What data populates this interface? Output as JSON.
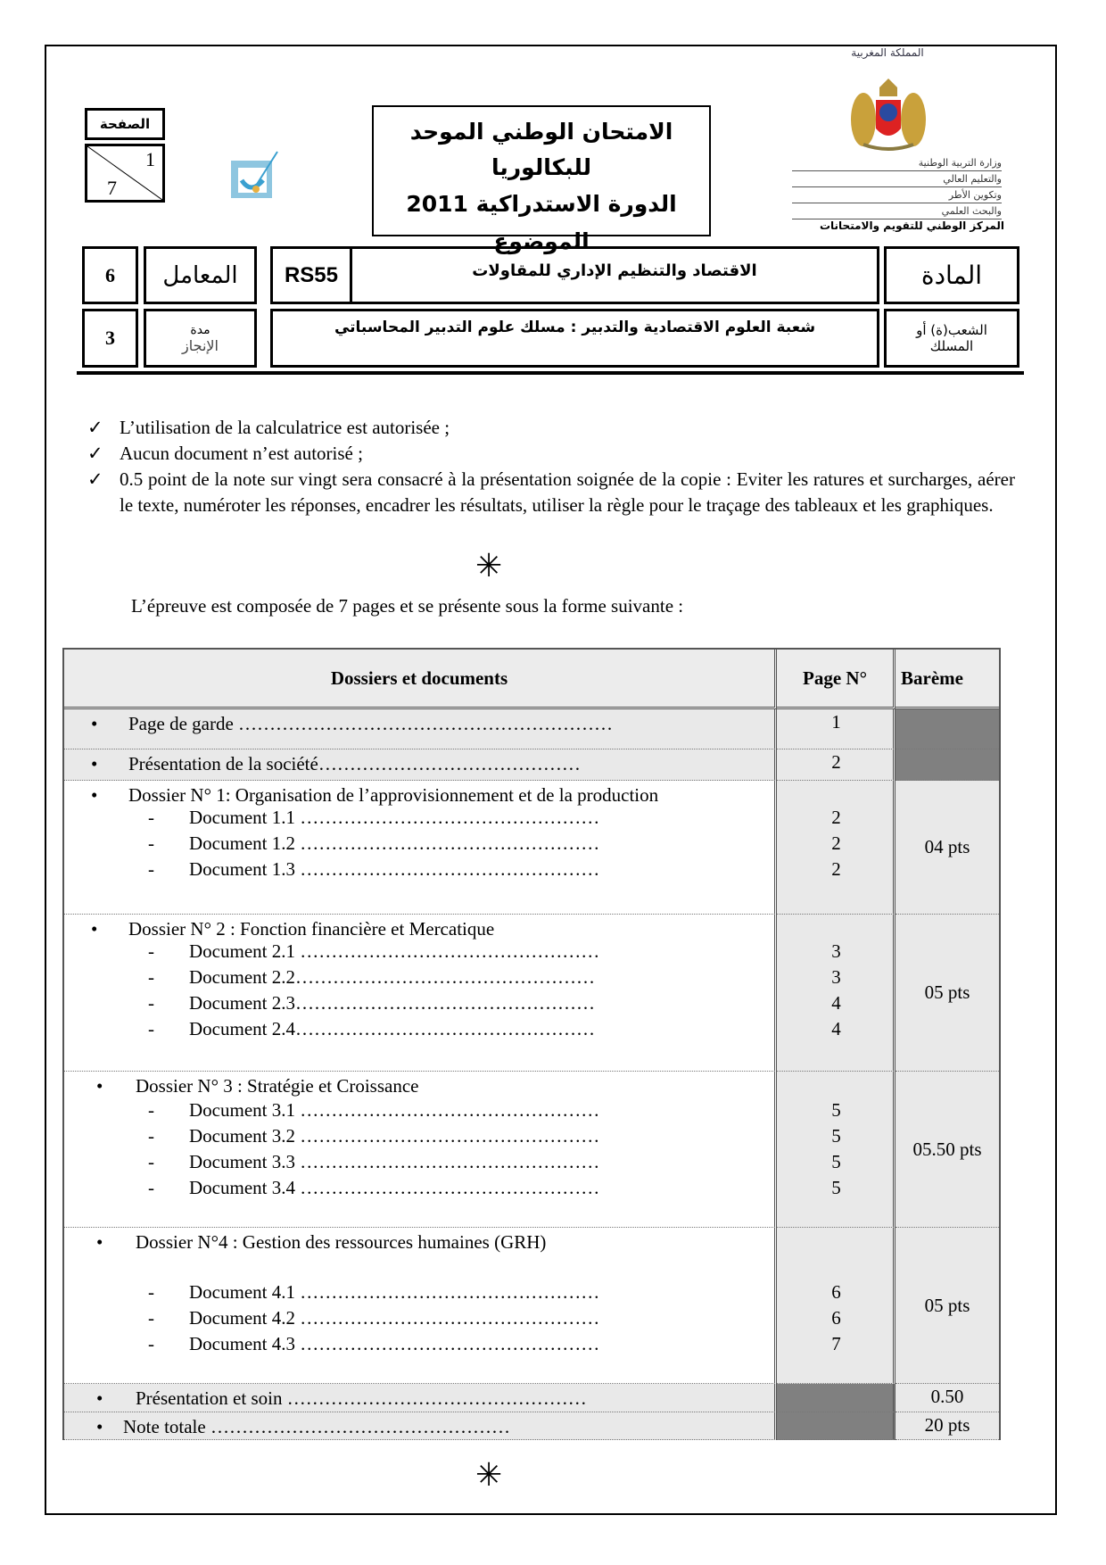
{
  "header": {
    "kingdom": "المملكة المغربية",
    "ministry_lines": [
      "وزارة التربية الوطنية",
      "والتعليم العالي",
      "وتكوين الأطر",
      "والبحث العلمي"
    ],
    "center": "المركز الوطني للتقويم والامتحانات",
    "page_label": "الصفحة",
    "page_current": "1",
    "page_total": "7",
    "exam_title_1": "الامتحان الوطني الموحد للبكالوريا",
    "exam_title_2": "الدورة الاستدراكية 2011",
    "exam_title_3": "الموضوع",
    "coef_value": "6",
    "coef_label": "المعامل",
    "code": "RS55",
    "subject": "الاقتصاد والتنظيم الإداري للمقاولات",
    "subject_label": "المادة",
    "duration_value": "3",
    "duration_label_1": "مدة",
    "duration_label_2": "الإنجاز",
    "branch": "شعبة العلوم الاقتصادية والتدبير : مسلك علوم التدبير المحاسباتي",
    "branch_label_1": "الشعب(ة) أو",
    "branch_label_2": "المسلك"
  },
  "instructions": [
    "L’utilisation de la calculatrice est autorisée ;",
    "Aucun document n’est autorisé ;",
    "0.5 point de la note sur vingt sera consacré à la présentation soignée de la copie : Eviter les ratures et surcharges, aérer le texte, numéroter les réponses, encadrer les résultats, utiliser la règle pour le traçage des tableaux et les graphiques."
  ],
  "intro": "L’épreuve est composée de 7 pages et se présente sous la forme suivante :",
  "table": {
    "headers": [
      "Dossiers et documents",
      "Page N°",
      "Barème"
    ],
    "rows": [
      {
        "title": "Page de garde ……………………………………………………",
        "page": "1",
        "bareme": "",
        "docs": []
      },
      {
        "title": "Présentation  de la société……………………………………",
        "page": "2",
        "bareme": "",
        "docs": []
      },
      {
        "title": "Dossier N° 1: Organisation de l’approvisionnement et de la production",
        "page": "",
        "bareme": "04 pts",
        "docs": [
          {
            "label": "Document 1.1 …………………………………………",
            "page": "2"
          },
          {
            "label": "Document 1.2 …………………………………………",
            "page": "2"
          },
          {
            "label": "Document 1.3 …………………………………………",
            "page": "2"
          }
        ]
      },
      {
        "title": "Dossier N° 2 : Fonction financière et Mercatique",
        "page": "",
        "bareme": "05 pts",
        "docs": [
          {
            "label": "Document 2.1 …………………………………………",
            "page": "3"
          },
          {
            "label": "Document 2.2…………………………………………",
            "page": "3"
          },
          {
            "label": "Document 2.3…………………………………………",
            "page": "4"
          },
          {
            "label": "Document 2.4…………………………………………",
            "page": "4"
          }
        ]
      },
      {
        "title": "Dossier N° 3 : Stratégie et Croissance",
        "page": "",
        "bareme": "05.50 pts",
        "docs": [
          {
            "label": "Document 3.1 …………………………………………",
            "page": "5"
          },
          {
            "label": "Document 3.2 …………………………………………",
            "page": "5"
          },
          {
            "label": "Document 3.3 …………………………………………",
            "page": "5"
          },
          {
            "label": "Document 3.4 …………………………………………",
            "page": "5"
          }
        ]
      },
      {
        "title": "Dossier N°4 : Gestion des ressources humaines (GRH)",
        "page": "",
        "bareme": "05 pts",
        "docs": [
          {
            "label": "Document 4.1 …………………………………………",
            "page": "6"
          },
          {
            "label": "Document 4.2 …………………………………………",
            "page": "6"
          },
          {
            "label": "Document 4.3 …………………………………………",
            "page": "7"
          }
        ]
      },
      {
        "title": "Présentation et soin …………………………………………",
        "page": "",
        "bareme": "0.50",
        "docs": []
      },
      {
        "title": "Note totale …………………………………………",
        "page": "",
        "bareme": "20 pts",
        "docs": []
      }
    ]
  },
  "colors": {
    "cell_bg": "#e9e9e9",
    "shaded": "#808080",
    "header_bg": "#ececec"
  }
}
